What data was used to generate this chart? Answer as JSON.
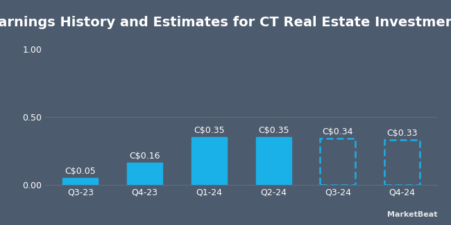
{
  "title": "Earnings History and Estimates for CT Real Estate Investment",
  "categories": [
    "Q3-23",
    "Q4-23",
    "Q1-24",
    "Q2-24",
    "Q3-24",
    "Q4-24"
  ],
  "values": [
    0.05,
    0.16,
    0.35,
    0.35,
    0.34,
    0.33
  ],
  "labels": [
    "C$0.05",
    "C$0.16",
    "C$0.35",
    "C$0.35",
    "C$0.34",
    "C$0.33"
  ],
  "is_estimate": [
    false,
    false,
    false,
    false,
    true,
    true
  ],
  "bar_color_solid": "#1ab0e8",
  "bar_color_estimate": "#1ab0e8",
  "background_color": "#4d5b6e",
  "text_color": "#ffffff",
  "grid_color": "#5e6e82",
  "ylim": [
    0,
    1.0
  ],
  "yticks": [
    0.0,
    0.5,
    1.0
  ],
  "ytick_labels": [
    "0.00",
    "0.50",
    "1.00"
  ],
  "title_fontsize": 14,
  "label_fontsize": 9,
  "tick_fontsize": 9,
  "bar_width": 0.55,
  "marketbeat_text": "MarketBeat"
}
